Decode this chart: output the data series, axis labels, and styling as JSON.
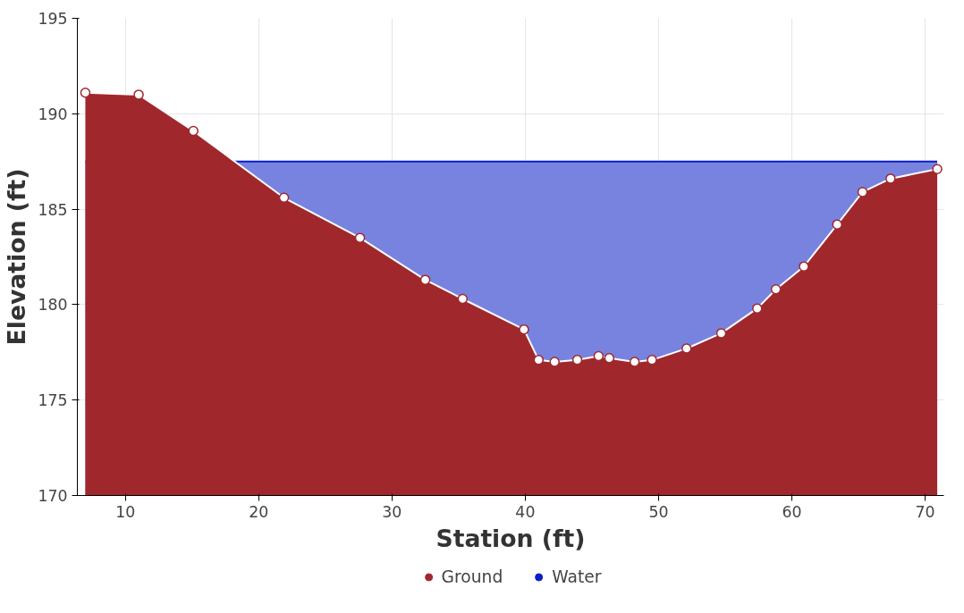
{
  "chart_data": {
    "type": "area",
    "xlabel": "Station (ft)",
    "ylabel": "Elevation (ft)",
    "xlim": [
      6.4,
      71.4
    ],
    "xticks": [
      10,
      20,
      30,
      40,
      50,
      60,
      70
    ],
    "ylim": [
      170,
      195
    ],
    "yticks": [
      170,
      175,
      180,
      185,
      190,
      195
    ],
    "grid": true,
    "legend": "bottom",
    "series": [
      {
        "name": "Ground",
        "color": "#a0282c",
        "marker": "circle",
        "x": [
          7,
          11,
          15.1,
          21.9,
          27.6,
          32.5,
          35.3,
          39.9,
          41.0,
          42.2,
          43.9,
          45.5,
          46.3,
          48.2,
          49.5,
          52.1,
          54.7,
          57.4,
          58.8,
          60.9,
          63.4,
          65.3,
          67.4,
          70.9
        ],
        "values": [
          191.1,
          191.0,
          189.1,
          185.6,
          183.5,
          181.3,
          180.3,
          178.7,
          177.1,
          177.0,
          177.1,
          177.3,
          177.2,
          177.0,
          177.1,
          177.7,
          178.5,
          179.8,
          180.8,
          182.0,
          184.2,
          185.9,
          186.6,
          187.1
        ]
      },
      {
        "name": "Water",
        "color": "#0a1ec8",
        "x": [
          7,
          70.9
        ],
        "values": [
          187.5,
          187.5
        ]
      }
    ]
  }
}
